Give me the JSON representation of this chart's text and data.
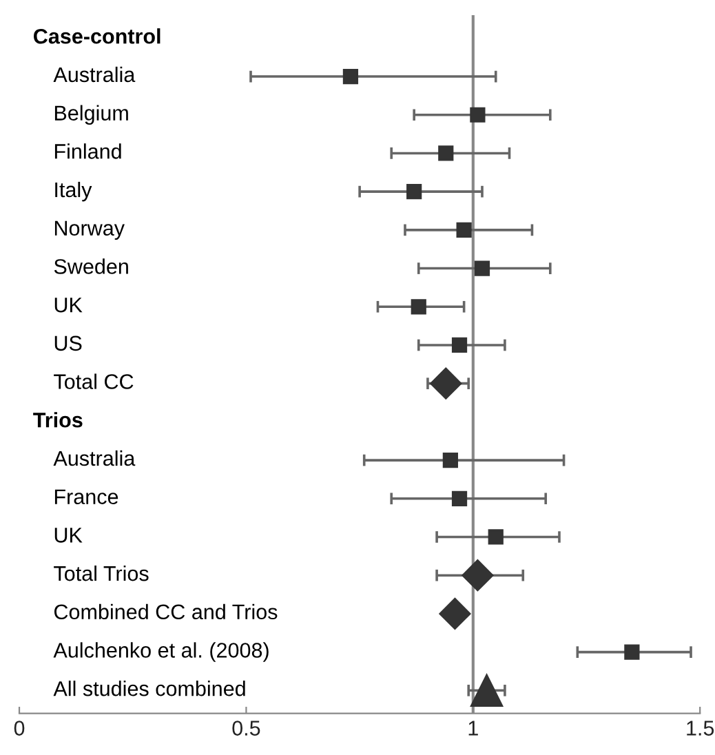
{
  "chart_data": {
    "type": "scatter",
    "orientation": "horizontal",
    "categories": [
      "Case-control",
      "Australia",
      "Belgium",
      "Finland",
      "Italy",
      "Norway",
      "Sweden",
      "UK",
      "US",
      "Total CC",
      "Trios",
      "Australia",
      "France",
      "UK",
      "Total Trios",
      "Combined CC and Trios",
      "Aulchenko et al. (2008)",
      "All studies combined"
    ],
    "series": [
      {
        "color": "#333333",
        "marker": "square",
        "values": [
          null,
          0.73,
          1.01,
          0.94,
          0.87,
          0.98,
          1.02,
          0.88,
          0.97,
          null,
          null,
          0.95,
          0.97,
          1.05,
          null,
          null,
          1.35,
          null
        ],
        "errors": [
          null,
          [
            0.51,
            1.05
          ],
          [
            0.87,
            1.17
          ],
          [
            0.82,
            1.08
          ],
          [
            0.75,
            1.02
          ],
          [
            0.85,
            1.13
          ],
          [
            0.88,
            1.17
          ],
          [
            0.79,
            0.98
          ],
          [
            0.88,
            1.07
          ],
          null,
          null,
          [
            0.76,
            1.2
          ],
          [
            0.82,
            1.16
          ],
          [
            0.92,
            1.19
          ],
          null,
          null,
          [
            1.23,
            1.48
          ],
          null
        ]
      },
      {
        "color": "#333333",
        "marker": "diamond",
        "values": [
          null,
          null,
          null,
          null,
          null,
          null,
          null,
          null,
          null,
          0.94,
          null,
          null,
          null,
          null,
          1.01,
          0.96,
          null,
          null
        ],
        "errors": [
          null,
          null,
          null,
          null,
          null,
          null,
          null,
          null,
          null,
          [
            0.9,
            0.99
          ],
          null,
          null,
          null,
          null,
          [
            0.92,
            1.11
          ],
          null,
          null,
          null
        ]
      },
      {
        "color": "#333333",
        "marker": "triangle",
        "values": [
          null,
          null,
          null,
          null,
          null,
          null,
          null,
          null,
          null,
          null,
          null,
          null,
          null,
          null,
          null,
          null,
          null,
          1.03
        ],
        "errors": [
          null,
          null,
          null,
          null,
          null,
          null,
          null,
          null,
          null,
          null,
          null,
          null,
          null,
          null,
          null,
          null,
          null,
          [
            0.99,
            1.07
          ]
        ]
      }
    ],
    "xlim": [
      0,
      1.5
    ],
    "xticks": [
      0,
      0.5,
      1,
      1.5
    ],
    "ref_lines": [
      {
        "axis": "x",
        "value": 1,
        "color": "#888888"
      }
    ],
    "grid": false,
    "legend": false
  }
}
